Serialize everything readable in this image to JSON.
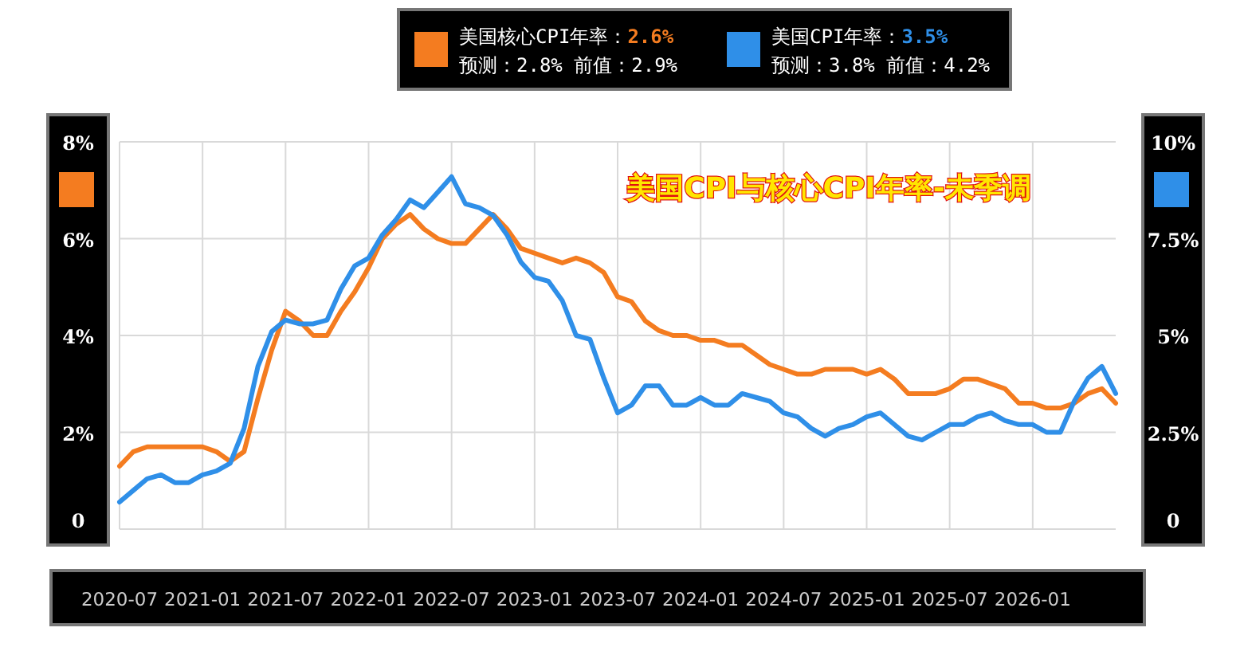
{
  "chart_data": {
    "type": "line",
    "title": "美国CPI与核心CPI年率-未季调",
    "annotations": [
      "2.6%",
      "预测：2.8%  前值：2.9%",
      "3.5%",
      "预测：3.8%  前值：4.2%"
    ],
    "x": [
      "2020-07",
      "2020-08",
      "2020-09",
      "2020-10",
      "2020-11",
      "2020-12",
      "2021-01",
      "2021-02",
      "2021-03",
      "2021-04",
      "2021-05",
      "2021-06",
      "2021-07",
      "2021-08",
      "2021-09",
      "2021-10",
      "2021-11",
      "2021-12",
      "2022-01",
      "2022-02",
      "2022-03",
      "2022-04",
      "2022-05",
      "2022-06",
      "2022-07",
      "2022-08",
      "2022-09",
      "2022-10",
      "2022-11",
      "2022-12",
      "2023-01",
      "2023-02",
      "2023-03",
      "2023-04",
      "2023-05",
      "2023-06",
      "2023-07",
      "2023-08",
      "2023-09",
      "2023-10",
      "2023-11",
      "2023-12",
      "2024-01",
      "2024-02",
      "2024-03",
      "2024-04",
      "2024-05",
      "2024-06",
      "2024-07",
      "2024-08",
      "2024-09",
      "2024-10",
      "2024-11",
      "2024-12",
      "2025-01",
      "2025-02",
      "2025-03",
      "2025-04",
      "2025-05",
      "2025-06",
      "2025-07",
      "2025-08",
      "2025-09",
      "2025-10",
      "2025-11",
      "2025-12",
      "2026-01",
      "2026-02",
      "2026-03",
      "2026-04",
      "2026-05",
      "2026-06",
      "2026-07"
    ],
    "series": [
      {
        "name": "美国核心CPI年率：",
        "color": "#f47c20",
        "values": [
          1.3,
          1.6,
          1.7,
          1.7,
          1.7,
          1.7,
          1.7,
          1.6,
          1.4,
          1.6,
          2.7,
          3.7,
          4.5,
          4.3,
          4.0,
          4.0,
          4.5,
          4.9,
          5.4,
          6.0,
          6.3,
          6.5,
          6.2,
          6.0,
          5.9,
          5.9,
          6.2,
          6.5,
          6.2,
          5.8,
          5.7,
          5.6,
          5.5,
          5.6,
          5.5,
          5.3,
          4.8,
          4.7,
          4.3,
          4.1,
          4.0,
          4.0,
          3.9,
          3.9,
          3.8,
          3.8,
          3.6,
          3.4,
          3.3,
          3.2,
          3.2,
          3.3,
          3.3,
          3.3,
          3.2,
          3.3,
          3.1,
          2.8,
          2.8,
          2.8,
          2.9,
          3.1,
          3.1,
          3.0,
          2.9,
          2.6,
          2.6,
          2.5,
          2.5,
          2.6,
          2.8,
          2.9,
          2.6
        ]
      },
      {
        "name": "美国CPI年率：",
        "color": "#2f8fe8",
        "axis": "y2",
        "values": [
          0.7,
          1.0,
          1.3,
          1.4,
          1.2,
          1.2,
          1.4,
          1.5,
          1.7,
          2.6,
          4.2,
          5.1,
          5.4,
          5.3,
          5.3,
          5.4,
          6.2,
          6.8,
          7.0,
          7.6,
          8.0,
          8.5,
          8.3,
          8.7,
          9.1,
          8.4,
          8.3,
          8.1,
          7.6,
          6.9,
          6.5,
          6.4,
          5.9,
          5.0,
          4.9,
          3.9,
          3.0,
          3.2,
          3.7,
          3.7,
          3.2,
          3.2,
          3.4,
          3.2,
          3.2,
          3.5,
          3.4,
          3.3,
          3.0,
          2.9,
          2.6,
          2.4,
          2.6,
          2.7,
          2.9,
          3.0,
          2.7,
          2.4,
          2.3,
          2.5,
          2.7,
          2.7,
          2.9,
          3.0,
          2.8,
          2.7,
          2.7,
          2.5,
          2.5,
          3.3,
          3.9,
          4.2,
          3.5
        ]
      }
    ],
    "ylim": [
      0,
      8
    ],
    "yticks": [
      0,
      {
        "value": 2,
        "label": "2%"
      },
      {
        "value": 4,
        "label": "4%"
      },
      {
        "value": 6,
        "label": "6%"
      },
      {
        "value": 8,
        "label": "8%"
      }
    ],
    "y2lim": [
      0,
      10
    ],
    "y2ticks": [
      0,
      {
        "value": 2.5,
        "label": "2.5%"
      },
      {
        "value": 5,
        "label": "5%"
      },
      {
        "value": 7.5,
        "label": "7.5%"
      },
      {
        "value": 10,
        "label": "10%"
      }
    ],
    "xlim": [
      "2020-07",
      "2026-07"
    ],
    "xticks": [
      "2020-07",
      "2021-01",
      "2021-07",
      "2022-01",
      "2022-07",
      "2023-01",
      "2023-07",
      "2024-01",
      "2024-07",
      "2025-01",
      "2025-07",
      "2026-01"
    ],
    "grid": true,
    "legend": "top",
    "marker": "none",
    "line_style": "solid"
  }
}
